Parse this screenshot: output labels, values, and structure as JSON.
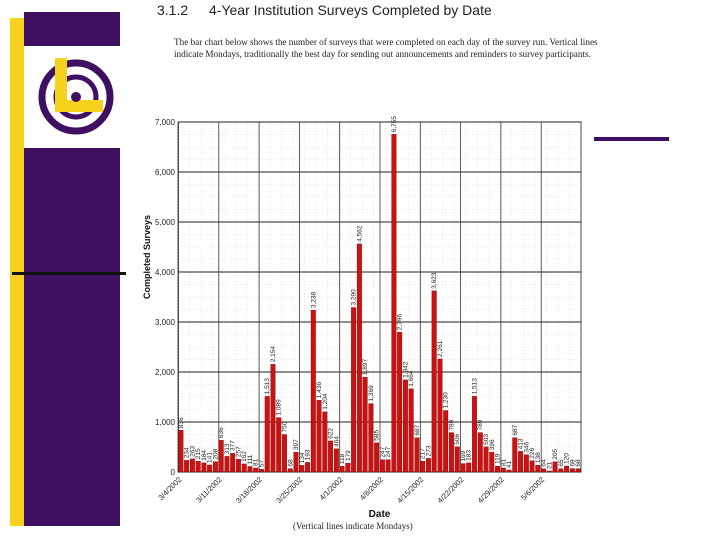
{
  "slide": {
    "number": "3.1.2",
    "title": "4-Year Institution Surveys Completed by Date",
    "intro": "The bar chart below shows the number of surveys that were completed on each day of the survey run. Vertical lines indicate Mondays, traditionally the best day for sending out announcements and reminders to survey participants.",
    "caption": "(Vertical lines indicate Mondays)"
  },
  "colors": {
    "bar": "#cc1111",
    "purple": "#3f0f62",
    "yellow": "#f6d21e"
  },
  "logo": {
    "icon": "clock-logo-icon"
  },
  "chart_data": {
    "type": "bar",
    "xlabel": "Date",
    "ylabel": "Completed Surveys",
    "ylim": [
      0,
      7000
    ],
    "yticks": [
      0,
      1000,
      2000,
      3000,
      4000,
      5000,
      6000,
      7000
    ],
    "ytick_labels": [
      "0",
      "1,000",
      "2,000",
      "3,000",
      "4,000",
      "5,000",
      "6,000",
      "7,000"
    ],
    "grid": true,
    "x_tick_labels": [
      "3/4/2002",
      "3/11/2002",
      "3/18/2002",
      "3/25/2002",
      "4/1/2002",
      "4/8/2002",
      "4/15/2002",
      "4/22/2002",
      "4/29/2002",
      "5/6/2002"
    ],
    "monday_lines": true,
    "values": [
      836,
      234,
      263,
      215,
      184,
      141,
      208,
      636,
      313,
      377,
      257,
      162,
      111,
      81,
      57,
      1513,
      2154,
      1089,
      750,
      68,
      397,
      134,
      193,
      3238,
      1436,
      1204,
      622,
      464,
      118,
      179,
      3290,
      4562,
      1897,
      1369,
      585,
      247,
      247,
      6755,
      2796,
      1842,
      1664,
      687,
      217,
      273,
      3623,
      2261,
      1230,
      789,
      506,
      169,
      183,
      1513,
      789,
      503,
      396,
      119,
      81,
      41,
      687,
      413,
      346,
      226,
      138,
      64,
      21,
      205,
      65,
      120,
      69,
      68
    ],
    "data_labels": [
      "836",
      "234",
      "263",
      "215",
      "184",
      "141",
      "208",
      "636",
      "313",
      "377",
      "257",
      "162",
      "111",
      "81",
      "57",
      "1,513",
      "2,154",
      "1,089",
      "750",
      "68",
      "397",
      "134",
      "193",
      "3,238",
      "1,436",
      "1,204",
      "622",
      "464",
      "118",
      "179",
      "3,290",
      "4,562",
      "1,897",
      "1,369",
      "585",
      "247",
      "247",
      "6,755",
      "2,796",
      "1,842",
      "1,664",
      "687",
      "217",
      "273",
      "3,623",
      "2,261",
      "1,230",
      "789",
      "506",
      "169",
      "183",
      "1,513",
      "789",
      "503",
      "396",
      "119",
      "81",
      "41",
      "687",
      "413",
      "346",
      "226",
      "138",
      "64",
      "21",
      "205",
      "65",
      "120",
      "69",
      "68"
    ]
  }
}
